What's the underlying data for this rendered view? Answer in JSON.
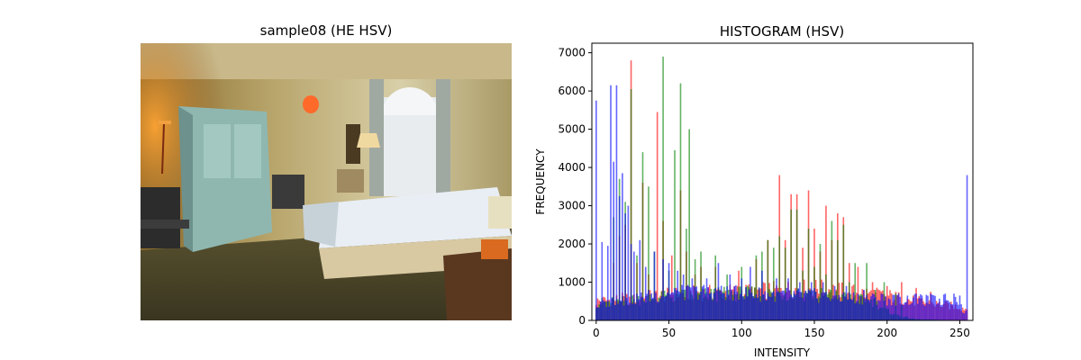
{
  "left_panel": {
    "title": "sample08 (HE HSV)",
    "image_subject": "bedroom-photo"
  },
  "chart_data": {
    "type": "bar",
    "title": "HISTOGRAM (HSV)",
    "xlabel": "INTENSITY",
    "ylabel": "FREQUENCY",
    "xlim": [
      -3,
      259
    ],
    "ylim": [
      0,
      7250
    ],
    "xticks": [
      0,
      50,
      100,
      150,
      200,
      250
    ],
    "yticks": [
      0,
      1000,
      2000,
      3000,
      4000,
      5000,
      6000,
      7000
    ],
    "colors": {
      "red": "#ff0000",
      "green": "#008000",
      "blue": "#0000ff"
    },
    "series": [
      {
        "name": "red",
        "color": "#ff0000",
        "opacity": 0.6,
        "spikes": [
          [
            12,
            1500
          ],
          [
            16,
            2200
          ],
          [
            20,
            2500
          ],
          [
            24,
            6800
          ],
          [
            28,
            1500
          ],
          [
            32,
            3600
          ],
          [
            36,
            1200
          ],
          [
            42,
            5450
          ],
          [
            46,
            2600
          ],
          [
            52,
            1700
          ],
          [
            58,
            3400
          ],
          [
            62,
            1800
          ],
          [
            68,
            1200
          ],
          [
            72,
            1400
          ],
          [
            82,
            1400
          ],
          [
            98,
            1300
          ],
          [
            110,
            1600
          ],
          [
            118,
            2100
          ],
          [
            126,
            3800
          ],
          [
            130,
            2100
          ],
          [
            134,
            3300
          ],
          [
            138,
            3300
          ],
          [
            142,
            1900
          ],
          [
            146,
            3400
          ],
          [
            150,
            2400
          ],
          [
            154,
            1800
          ],
          [
            158,
            3000
          ],
          [
            162,
            2100
          ],
          [
            166,
            2800
          ],
          [
            170,
            2700
          ],
          [
            174,
            1500
          ],
          [
            180,
            1400
          ],
          [
            190,
            1000
          ],
          [
            200,
            900
          ],
          [
            210,
            1000
          ],
          [
            220,
            850
          ],
          [
            230,
            750
          ]
        ],
        "base": [
          [
            0,
            500
          ],
          [
            30,
            600
          ],
          [
            60,
            700
          ],
          [
            100,
            750
          ],
          [
            150,
            850
          ],
          [
            200,
            650
          ],
          [
            220,
            500
          ],
          [
            250,
            350
          ],
          [
            255,
            300
          ]
        ]
      },
      {
        "name": "green",
        "color": "#008000",
        "opacity": 0.6,
        "spikes": [
          [
            12,
            2700
          ],
          [
            16,
            3700
          ],
          [
            20,
            3100
          ],
          [
            24,
            6050
          ],
          [
            28,
            1700
          ],
          [
            32,
            4400
          ],
          [
            36,
            3500
          ],
          [
            40,
            1800
          ],
          [
            46,
            6900
          ],
          [
            50,
            1300
          ],
          [
            54,
            4450
          ],
          [
            58,
            6200
          ],
          [
            62,
            2400
          ],
          [
            64,
            5000
          ],
          [
            68,
            1600
          ],
          [
            72,
            1800
          ],
          [
            82,
            1700
          ],
          [
            90,
            1200
          ],
          [
            100,
            1400
          ],
          [
            110,
            1700
          ],
          [
            114,
            1800
          ],
          [
            118,
            2100
          ],
          [
            122,
            1900
          ],
          [
            126,
            2200
          ],
          [
            130,
            1900
          ],
          [
            134,
            2900
          ],
          [
            138,
            2900
          ],
          [
            142,
            1300
          ],
          [
            146,
            2400
          ],
          [
            150,
            1400
          ],
          [
            154,
            2000
          ],
          [
            158,
            1200
          ],
          [
            162,
            2600
          ],
          [
            166,
            2100
          ],
          [
            170,
            2500
          ],
          [
            174,
            1000
          ],
          [
            178,
            1500
          ],
          [
            186,
            1500
          ],
          [
            192,
            800
          ],
          [
            198,
            1000
          ],
          [
            206,
            700
          ],
          [
            210,
            400
          ]
        ],
        "base": [
          [
            0,
            450
          ],
          [
            30,
            550
          ],
          [
            60,
            650
          ],
          [
            100,
            700
          ],
          [
            150,
            700
          ],
          [
            190,
            500
          ],
          [
            200,
            250
          ],
          [
            210,
            100
          ],
          [
            220,
            30
          ],
          [
            255,
            0
          ]
        ]
      },
      {
        "name": "blue",
        "color": "#0000ff",
        "opacity": 0.6,
        "spikes": [
          [
            0,
            5750
          ],
          [
            4,
            2050
          ],
          [
            8,
            1950
          ],
          [
            10,
            6150
          ],
          [
            12,
            4150
          ],
          [
            14,
            6150
          ],
          [
            16,
            3250
          ],
          [
            18,
            3850
          ],
          [
            20,
            2800
          ],
          [
            22,
            3000
          ],
          [
            24,
            2000
          ],
          [
            26,
            1800
          ],
          [
            30,
            2100
          ],
          [
            34,
            1400
          ],
          [
            40,
            1800
          ],
          [
            46,
            1600
          ],
          [
            50,
            1500
          ],
          [
            56,
            1300
          ],
          [
            60,
            1200
          ],
          [
            66,
            1100
          ],
          [
            76,
            1100
          ],
          [
            84,
            1500
          ],
          [
            92,
            1200
          ],
          [
            100,
            1100
          ],
          [
            106,
            1400
          ],
          [
            114,
            1300
          ],
          [
            124,
            1100
          ],
          [
            132,
            1100
          ],
          [
            140,
            1000
          ],
          [
            148,
            1000
          ],
          [
            156,
            1000
          ],
          [
            164,
            900
          ],
          [
            172,
            900
          ],
          [
            184,
            800
          ],
          [
            196,
            700
          ],
          [
            208,
            700
          ],
          [
            220,
            700
          ],
          [
            230,
            700
          ],
          [
            240,
            700
          ],
          [
            246,
            700
          ],
          [
            250,
            650
          ],
          [
            255,
            3800
          ]
        ],
        "base": [
          [
            0,
            350
          ],
          [
            10,
            500
          ],
          [
            40,
            650
          ],
          [
            70,
            750
          ],
          [
            100,
            700
          ],
          [
            150,
            650
          ],
          [
            200,
            550
          ],
          [
            230,
            520
          ],
          [
            250,
            550
          ],
          [
            253,
            150
          ],
          [
            254,
            300
          ],
          [
            255,
            3800
          ]
        ]
      }
    ]
  }
}
